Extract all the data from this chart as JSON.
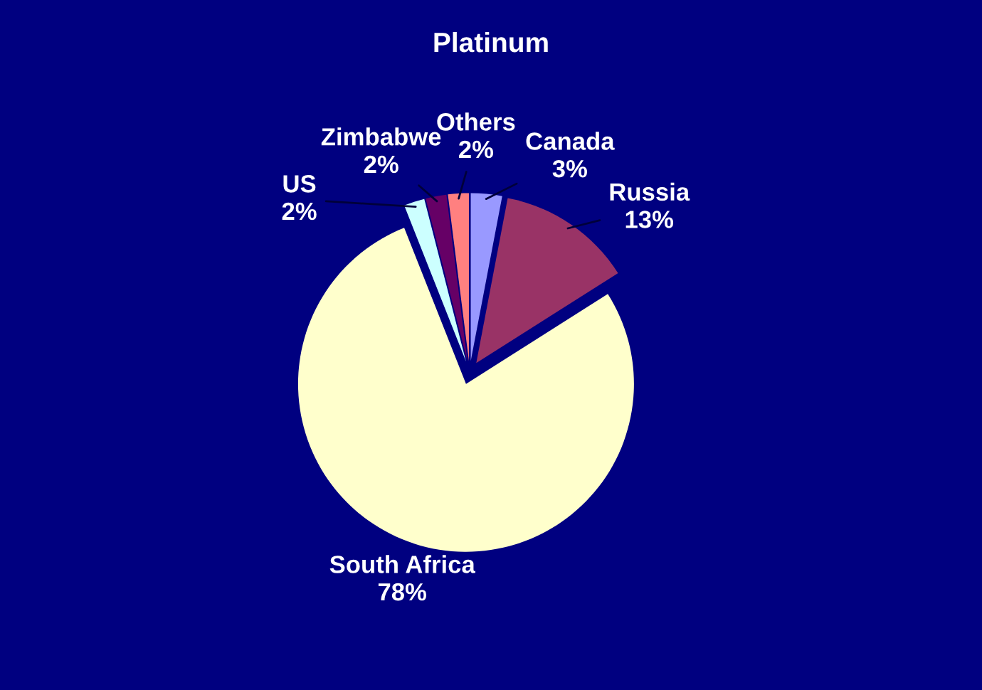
{
  "chart_data": {
    "type": "pie",
    "title": "Platinum",
    "categories": [
      "Canada",
      "Russia",
      "South Africa",
      "US",
      "Zimbabwe",
      "Others"
    ],
    "values": [
      3,
      13,
      78,
      2,
      2,
      2
    ],
    "colors": [
      "#9999ff",
      "#993366",
      "#ffffcc",
      "#ccffff",
      "#660066",
      "#ff8080"
    ],
    "value_labels": [
      "3%",
      "13%",
      "78%",
      "2%",
      "2%",
      "2%"
    ]
  }
}
